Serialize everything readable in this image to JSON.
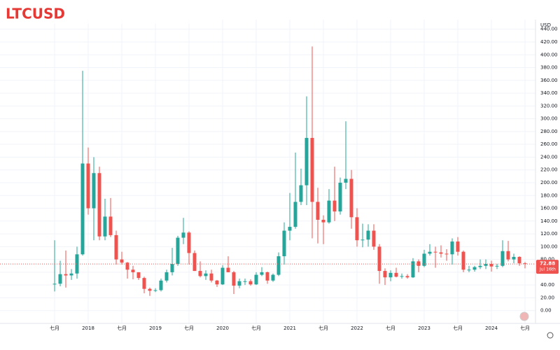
{
  "chart_data": {
    "type": "candlestick",
    "title": "LTCUSD",
    "currency": "USD",
    "x": [
      "2017-07",
      "2017-08",
      "2017-09",
      "2017-10",
      "2017-11",
      "2017-12",
      "2018-01",
      "2018-02",
      "2018-03",
      "2018-04",
      "2018-05",
      "2018-06",
      "2018-07",
      "2018-08",
      "2018-09",
      "2018-10",
      "2018-11",
      "2018-12",
      "2019-01",
      "2019-02",
      "2019-03",
      "2019-04",
      "2019-05",
      "2019-06",
      "2019-07",
      "2019-08",
      "2019-09",
      "2019-10",
      "2019-11",
      "2019-12",
      "2020-01",
      "2020-02",
      "2020-03",
      "2020-04",
      "2020-05",
      "2020-06",
      "2020-07",
      "2020-08",
      "2020-09",
      "2020-10",
      "2020-11",
      "2020-12",
      "2021-01",
      "2021-02",
      "2021-03",
      "2021-04",
      "2021-05",
      "2021-06",
      "2021-07",
      "2021-08",
      "2021-09",
      "2021-10",
      "2021-11",
      "2021-12",
      "2022-01",
      "2022-02",
      "2022-03",
      "2022-04",
      "2022-05",
      "2022-06",
      "2022-07",
      "2022-08",
      "2022-09",
      "2022-10",
      "2022-11",
      "2022-12",
      "2023-01",
      "2023-02",
      "2023-03",
      "2023-04",
      "2023-05",
      "2023-06",
      "2023-07",
      "2023-08",
      "2023-09",
      "2023-10",
      "2023-11",
      "2023-12",
      "2024-01",
      "2024-02",
      "2024-03",
      "2024-04",
      "2024-05",
      "2024-06",
      "2024-07"
    ],
    "open": [
      42,
      42,
      57,
      55,
      58,
      88,
      230,
      160,
      215,
      116,
      147,
      118,
      80,
      75,
      64,
      60,
      51,
      34,
      31,
      32,
      47,
      60,
      73,
      114,
      122,
      90,
      62,
      54,
      58,
      47,
      41,
      67,
      60,
      39,
      46,
      46,
      41,
      56,
      60,
      47,
      56,
      85,
      125,
      131,
      170,
      196,
      270,
      170,
      142,
      138,
      172,
      155,
      200,
      206,
      146,
      110,
      111,
      125,
      100,
      62,
      52,
      59,
      53,
      54,
      52,
      77,
      70,
      89,
      92,
      91,
      89,
      88,
      108,
      92,
      64,
      64,
      68,
      70,
      73,
      69,
      70,
      93,
      80,
      84,
      74
    ],
    "high": [
      110,
      78,
      94,
      65,
      100,
      375,
      255,
      240,
      225,
      175,
      176,
      125,
      92,
      76,
      70,
      60,
      53,
      36,
      35,
      50,
      64,
      98,
      117,
      145,
      124,
      94,
      77,
      63,
      64,
      48,
      71,
      85,
      62,
      50,
      50,
      49,
      60,
      68,
      61,
      58,
      91,
      138,
      184,
      247,
      222,
      335,
      413,
      192,
      149,
      190,
      225,
      208,
      296,
      220,
      160,
      136,
      135,
      135,
      104,
      66,
      63,
      67,
      58,
      57,
      82,
      80,
      95,
      104,
      100,
      102,
      96,
      113,
      115,
      94,
      70,
      70,
      80,
      80,
      78,
      73,
      110,
      109,
      89,
      85,
      76
    ],
    "low": [
      30,
      38,
      36,
      48,
      50,
      86,
      150,
      110,
      110,
      110,
      115,
      72,
      72,
      50,
      49,
      48,
      27,
      23,
      29,
      30,
      44,
      55,
      70,
      104,
      72,
      62,
      52,
      48,
      44,
      37,
      40,
      60,
      26,
      35,
      40,
      39,
      40,
      54,
      42,
      45,
      54,
      72,
      110,
      128,
      165,
      165,
      113,
      105,
      104,
      136,
      140,
      150,
      190,
      128,
      100,
      99,
      100,
      95,
      42,
      40,
      46,
      52,
      50,
      50,
      51,
      60,
      68,
      86,
      67,
      83,
      78,
      72,
      86,
      60,
      60,
      61,
      65,
      65,
      61,
      65,
      68,
      77,
      74,
      70,
      66
    ],
    "close": [
      42,
      57,
      55,
      58,
      88,
      230,
      160,
      215,
      116,
      147,
      118,
      80,
      75,
      64,
      60,
      51,
      34,
      31,
      32,
      47,
      60,
      73,
      114,
      122,
      90,
      62,
      54,
      58,
      47,
      41,
      67,
      60,
      39,
      46,
      46,
      41,
      56,
      60,
      47,
      56,
      85,
      125,
      131,
      170,
      196,
      270,
      170,
      142,
      138,
      172,
      155,
      200,
      206,
      146,
      110,
      111,
      125,
      100,
      62,
      52,
      59,
      53,
      54,
      52,
      77,
      70,
      89,
      92,
      91,
      89,
      88,
      108,
      92,
      64,
      64,
      68,
      70,
      73,
      69,
      70,
      93,
      80,
      84,
      74,
      72.88
    ],
    "up_color": "#26a69a",
    "down_color": "#ef5350",
    "last_price": 72.88,
    "last_date_label": "Jul 16th",
    "ylim": [
      -20,
      455
    ],
    "yticks": [
      {
        "value": 0,
        "label": "0.00"
      },
      {
        "value": 20,
        "label": "20.00"
      },
      {
        "value": 40,
        "label": "40.00"
      },
      {
        "value": 60,
        "label": "60.00"
      },
      {
        "value": 80,
        "label": "80.00"
      },
      {
        "value": 100,
        "label": "100.00"
      },
      {
        "value": 120,
        "label": "120.00"
      },
      {
        "value": 140,
        "label": "140.00"
      },
      {
        "value": 160,
        "label": "160.00"
      },
      {
        "value": 180,
        "label": "180.00"
      },
      {
        "value": 200,
        "label": "200.00"
      },
      {
        "value": 220,
        "label": "220.00"
      },
      {
        "value": 240,
        "label": "240.00"
      },
      {
        "value": 260,
        "label": "260.00"
      },
      {
        "value": 280,
        "label": "280.00"
      },
      {
        "value": 300,
        "label": "300.00"
      },
      {
        "value": 320,
        "label": "320.00"
      },
      {
        "value": 340,
        "label": "340.00"
      },
      {
        "value": 360,
        "label": "360.00"
      },
      {
        "value": 380,
        "label": "380.00"
      },
      {
        "value": 400,
        "label": "400.00"
      },
      {
        "value": 420,
        "label": "420.00"
      },
      {
        "value": 440,
        "label": "440.00"
      }
    ],
    "xticks": [
      {
        "value": "2017-07",
        "label": "七月"
      },
      {
        "value": "2018-01",
        "label": "2018"
      },
      {
        "value": "2018-07",
        "label": "七月"
      },
      {
        "value": "2019-01",
        "label": "2019"
      },
      {
        "value": "2019-07",
        "label": "七月"
      },
      {
        "value": "2020-01",
        "label": "2020"
      },
      {
        "value": "2020-07",
        "label": "七月"
      },
      {
        "value": "2021-01",
        "label": "2021"
      },
      {
        "value": "2021-07",
        "label": "七月"
      },
      {
        "value": "2022-01",
        "label": "2022"
      },
      {
        "value": "2022-07",
        "label": "七月"
      },
      {
        "value": "2023-01",
        "label": "2023"
      },
      {
        "value": "2023-07",
        "label": "七月"
      },
      {
        "value": "2024-01",
        "label": "2024"
      },
      {
        "value": "2024-07",
        "label": "七月"
      }
    ],
    "grid": true
  }
}
